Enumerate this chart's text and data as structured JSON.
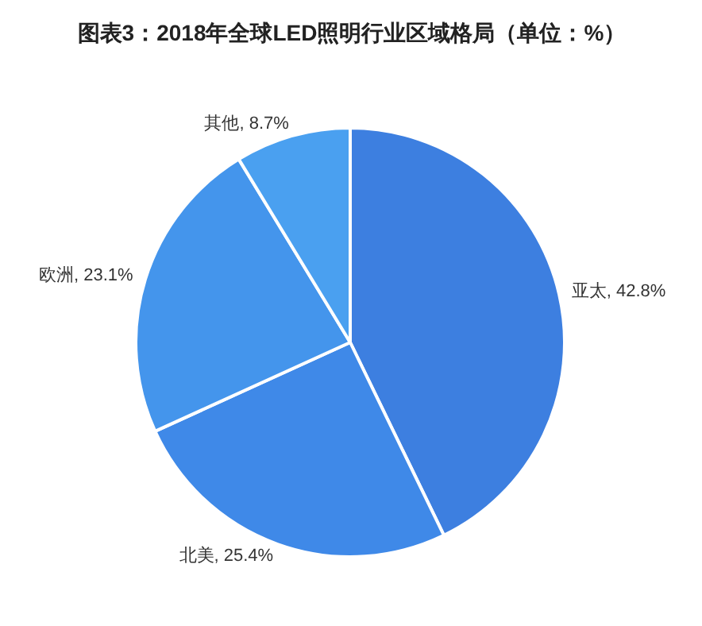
{
  "chart_data": {
    "type": "pie",
    "title": "图表3：2018年全球LED照明行业区域格局（单位：%）",
    "categories": [
      "亚太",
      "北美",
      "欧洲",
      "其他"
    ],
    "values": [
      42.8,
      25.4,
      23.1,
      8.7
    ],
    "value_labels": [
      "42.8%",
      "25.4%",
      "23.1%",
      "8.7%"
    ],
    "colors": [
      "#3d7fe0",
      "#3f89e8",
      "#4495ec",
      "#4aa0f0"
    ]
  }
}
